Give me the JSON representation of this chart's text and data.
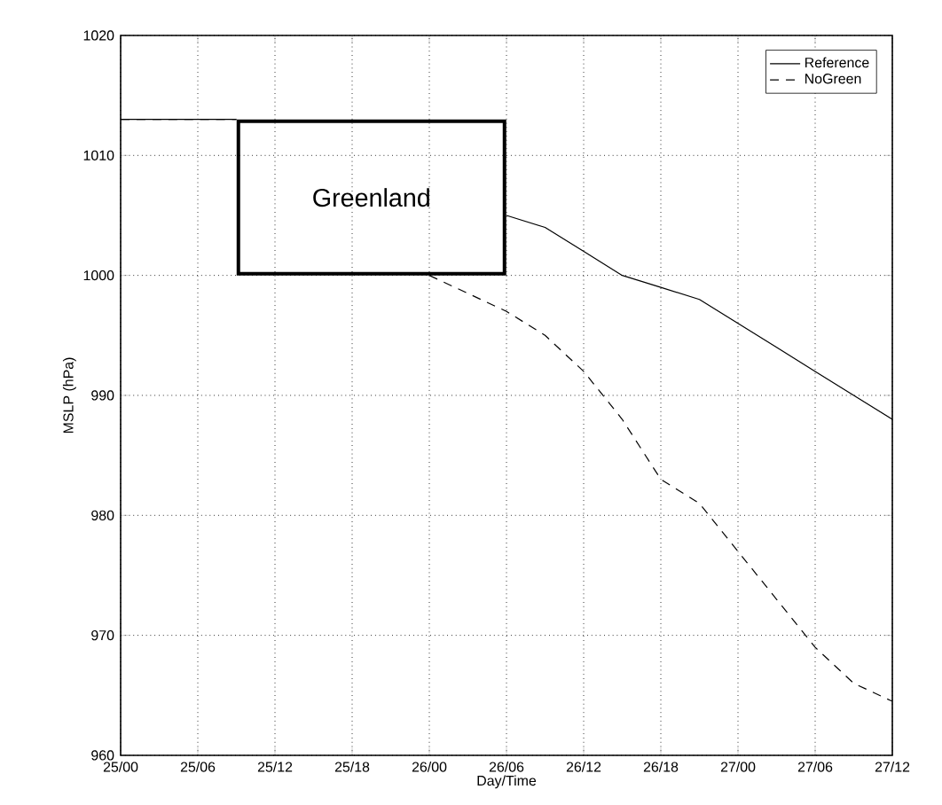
{
  "chart_data": {
    "type": "line",
    "xlabel": "Day/Time",
    "ylabel": "MSLP (hPa)",
    "categories": [
      "25/00",
      null,
      "25/06",
      null,
      "25/12",
      null,
      "25/18",
      null,
      "26/00",
      null,
      "26/06",
      null,
      "26/12",
      null,
      "26/18",
      null,
      "27/00",
      null,
      "27/06",
      null,
      "27/12"
    ],
    "ylim": [
      960,
      1020
    ],
    "yticks": [
      960,
      970,
      980,
      990,
      1000,
      1010,
      1020
    ],
    "grid": true,
    "legend": "top right",
    "marker": "none",
    "annotations": [
      "Greenland"
    ],
    "series": [
      {
        "name": "Reference",
        "color": "#000000",
        "line_style": "solid",
        "values": [
          1013,
          1013,
          1013,
          1013,
          null,
          null,
          null,
          null,
          null,
          null,
          1005,
          1004,
          1002,
          1000,
          999,
          998,
          996,
          994,
          992,
          990,
          988
        ]
      },
      {
        "name": "NoGreen",
        "color": "#000000",
        "line_style": "dashed",
        "values": [
          1013,
          1013,
          1013,
          1013,
          null,
          null,
          null,
          null,
          1000,
          998.5,
          997,
          995,
          992,
          988,
          983,
          981,
          977,
          973,
          969,
          966,
          964.5
        ]
      }
    ]
  }
}
